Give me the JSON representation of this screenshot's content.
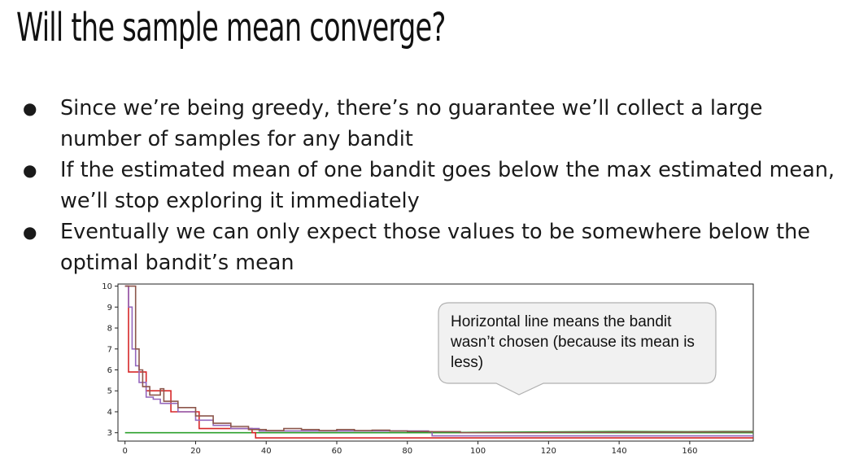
{
  "title": "Will the sample mean converge?",
  "bullets": [
    "Since we’re being greedy, there’s no guarantee we’ll collect a large number of samples for any bandit",
    "If the estimated mean of one bandit goes below the max estimated mean, we’ll stop exploring it immediately",
    "Eventually we can only expect those values to be somewhere below the optimal bandit’s mean"
  ],
  "bullet_glyph": "●",
  "callout": "Horizontal line means the bandit wasn’t chosen (because its mean is less)",
  "chart_data": {
    "type": "line",
    "title": "",
    "xlabel": "",
    "ylabel": "",
    "xlim": [
      -2,
      178
    ],
    "ylim": [
      2.6,
      10.1
    ],
    "xticks": [
      0,
      20,
      40,
      60,
      80,
      100,
      120,
      140,
      160
    ],
    "yticks": [
      3,
      4,
      5,
      6,
      7,
      8,
      9,
      10
    ],
    "grid": false,
    "series": [
      {
        "color": "#2ca02c",
        "steps": [
          [
            0,
            3.0
          ],
          [
            178,
            3.0
          ]
        ],
        "points": [
          [
            86,
            3.0
          ],
          [
            100,
            3.02
          ],
          [
            120,
            3.04
          ],
          [
            140,
            3.06
          ],
          [
            160,
            3.05
          ],
          [
            170,
            3.06
          ],
          [
            178,
            3.06
          ]
        ]
      },
      {
        "color": "#d62728",
        "steps": [
          [
            0,
            10.0
          ],
          [
            1,
            5.9
          ],
          [
            5,
            5.9
          ],
          [
            6,
            5.0
          ],
          [
            12,
            5.0
          ],
          [
            13,
            4.0
          ],
          [
            20,
            4.0
          ],
          [
            21,
            3.2
          ],
          [
            35,
            3.2
          ],
          [
            36,
            3.0
          ],
          [
            37,
            2.75
          ],
          [
            178,
            2.75
          ]
        ],
        "points": []
      },
      {
        "color": "#9467bd",
        "steps": [
          [
            0,
            10.0
          ],
          [
            1,
            9.0
          ],
          [
            2,
            7.0
          ],
          [
            3,
            6.2
          ],
          [
            4,
            5.4
          ],
          [
            6,
            4.7
          ],
          [
            8,
            4.6
          ],
          [
            10,
            4.4
          ],
          [
            15,
            4.0
          ],
          [
            20,
            3.6
          ],
          [
            25,
            3.35
          ],
          [
            30,
            3.2
          ],
          [
            38,
            3.08
          ],
          [
            86,
            3.05
          ],
          [
            87,
            2.85
          ],
          [
            178,
            2.85
          ]
        ],
        "points": []
      },
      {
        "color": "#8c564b",
        "steps": [
          [
            0,
            10.0
          ],
          [
            2,
            10.0
          ],
          [
            3,
            7.0
          ],
          [
            4,
            6.0
          ],
          [
            5,
            5.2
          ],
          [
            7,
            4.8
          ],
          [
            10,
            5.1
          ],
          [
            11,
            4.5
          ],
          [
            15,
            4.2
          ],
          [
            20,
            3.8
          ],
          [
            25,
            3.45
          ],
          [
            30,
            3.3
          ],
          [
            35,
            3.15
          ],
          [
            40,
            3.1
          ],
          [
            45,
            3.2
          ],
          [
            50,
            3.15
          ],
          [
            55,
            3.1
          ],
          [
            60,
            3.15
          ],
          [
            65,
            3.1
          ],
          [
            70,
            3.12
          ],
          [
            75,
            3.08
          ],
          [
            80,
            3.06
          ],
          [
            86,
            3.05
          ],
          [
            95,
            3.0
          ],
          [
            100,
            3.0
          ],
          [
            110,
            3.0
          ],
          [
            120,
            3.02
          ],
          [
            140,
            3.03
          ],
          [
            160,
            3.04
          ],
          [
            178,
            3.04
          ]
        ],
        "points": []
      }
    ]
  }
}
